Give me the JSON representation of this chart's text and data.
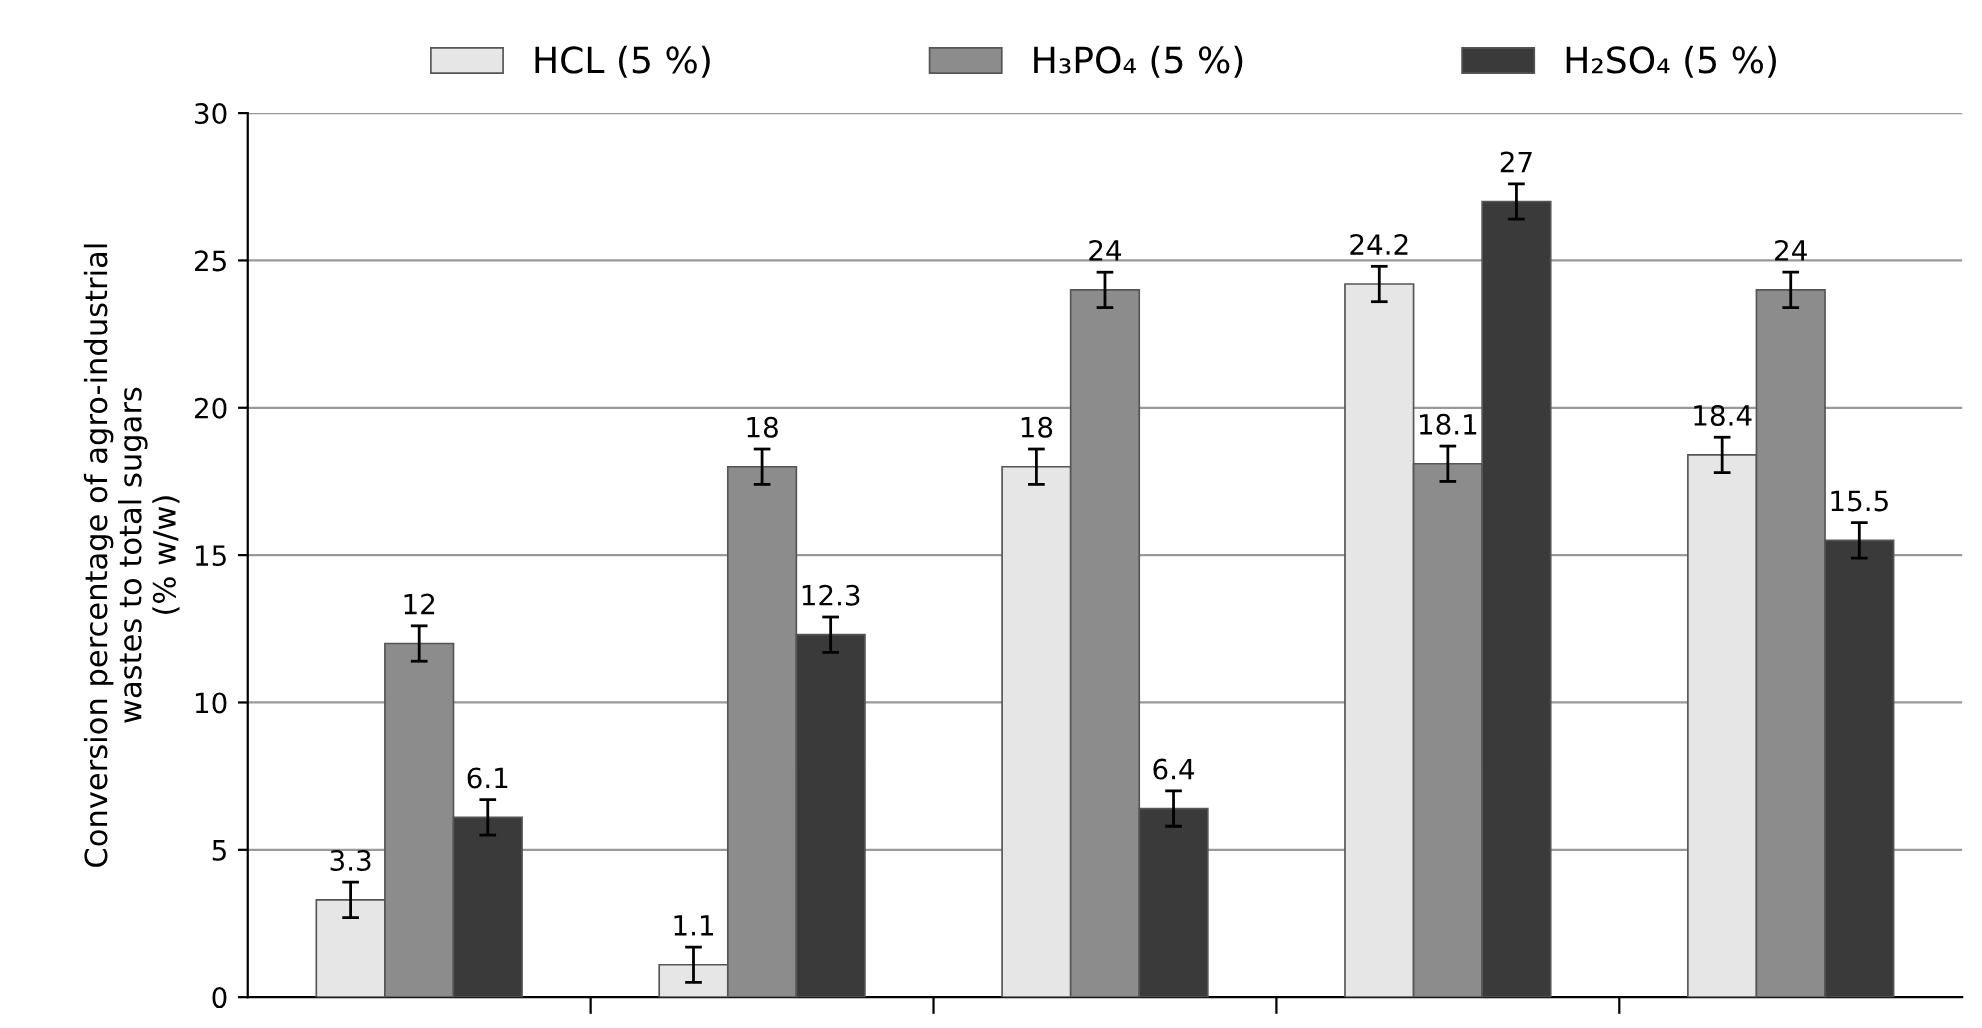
{
  "chart_data": {
    "type": "bar",
    "ylabel": "Conversion percentage of agro-industrial\nwastes to total sugars\n(% w/w)",
    "categories": [
      null,
      null,
      null,
      null,
      null
    ],
    "series": [
      {
        "name": "HCL (5 %)",
        "color": "#e6e6e6",
        "values": [
          3.3,
          1.1,
          18,
          24.2,
          18.4
        ],
        "errors": [
          0.6,
          0.6,
          0.6,
          0.6,
          0.6
        ]
      },
      {
        "name": "H₃PO₄ (5 %)",
        "color": "#8c8c8c",
        "values": [
          12,
          18,
          24,
          18.1,
          24
        ],
        "errors": [
          0.6,
          0.6,
          0.6,
          0.6,
          0.6
        ]
      },
      {
        "name": "H₂SO₄ (5 %)",
        "color": "#3a3a3a",
        "values": [
          6.1,
          12.3,
          6.4,
          27,
          15.5
        ],
        "errors": [
          0.6,
          0.6,
          0.6,
          0.6,
          0.6
        ]
      }
    ],
    "ylim": [
      0,
      30
    ],
    "yticks": [
      0,
      5,
      10,
      15,
      20,
      25,
      30
    ],
    "grid": "y",
    "legend": "top",
    "data_labels": true
  }
}
